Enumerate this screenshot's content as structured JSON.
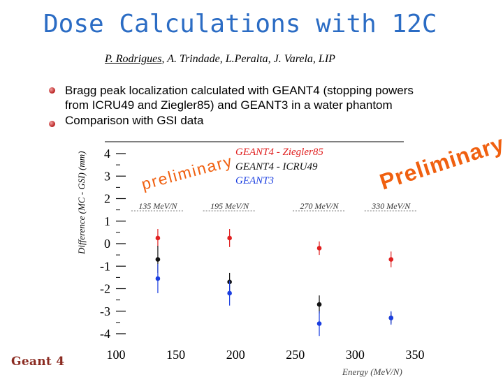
{
  "slide": {
    "title": "Dose Calculations with 12C",
    "authors_first": "P. Rodrigues",
    "authors_rest": ", A. Trindade, L.Peralta, J. Varela, LIP",
    "bullets": [
      "Bragg peak localization calculated with GEANT4 (stopping powers",
      "from ICRU49 and Ziegler85) and GEANT3 in a water phantom",
      "Comparison with GSI data"
    ],
    "logo": "Geant 4",
    "stamp_small": "preliminary",
    "stamp_big": "Preliminary!"
  },
  "colors": {
    "title": "#2b6cc4",
    "geant4_ziegler": "#e02020",
    "geant4_icru": "#111111",
    "geant3": "#1a3ee0",
    "stamp": "#f06010"
  },
  "chart_data": {
    "type": "scatter",
    "title": "",
    "xlabel": "Energy (MeV/N)",
    "ylabel": "Difference (MC - GSI) (mm)",
    "xlim": [
      100,
      350
    ],
    "ylim": [
      -4,
      4
    ],
    "x_ticks": [
      "100",
      "150",
      "200",
      "250",
      "300",
      "350"
    ],
    "y_ticks": [
      "-4",
      "-3",
      "-2",
      "-1",
      "0",
      "1",
      "2",
      "3",
      "4"
    ],
    "energy_labels": [
      {
        "label": "135 MeV/N",
        "x": 135
      },
      {
        "label": "195 MeV/N",
        "x": 195
      },
      {
        "label": "270 MeV/N",
        "x": 270
      },
      {
        "label": "330 MeV/N",
        "x": 330
      }
    ],
    "series": [
      {
        "name": "GEANT4 - Ziegler85",
        "color": "#e02020",
        "points": [
          {
            "x": 135,
            "y": 0.25,
            "err": 0.4
          },
          {
            "x": 195,
            "y": 0.25,
            "err": 0.4
          },
          {
            "x": 270,
            "y": -0.2,
            "err": 0.3
          },
          {
            "x": 330,
            "y": -0.7,
            "err": 0.35
          }
        ]
      },
      {
        "name": "GEANT4 - ICRU49",
        "color": "#111111",
        "points": [
          {
            "x": 135,
            "y": -0.7,
            "err": 0.6
          },
          {
            "x": 195,
            "y": -1.7,
            "err": 0.4
          },
          {
            "x": 270,
            "y": -2.7,
            "err": 0.4
          },
          {
            "x": 330,
            "y": -3.3,
            "err": 0.25
          }
        ]
      },
      {
        "name": "GEANT3",
        "color": "#1a3ee0",
        "points": [
          {
            "x": 135,
            "y": -1.55,
            "err": 0.65
          },
          {
            "x": 195,
            "y": -2.2,
            "err": 0.55
          },
          {
            "x": 270,
            "y": -3.55,
            "err": 0.55
          },
          {
            "x": 330,
            "y": -3.3,
            "err": 0.3
          }
        ]
      }
    ]
  }
}
